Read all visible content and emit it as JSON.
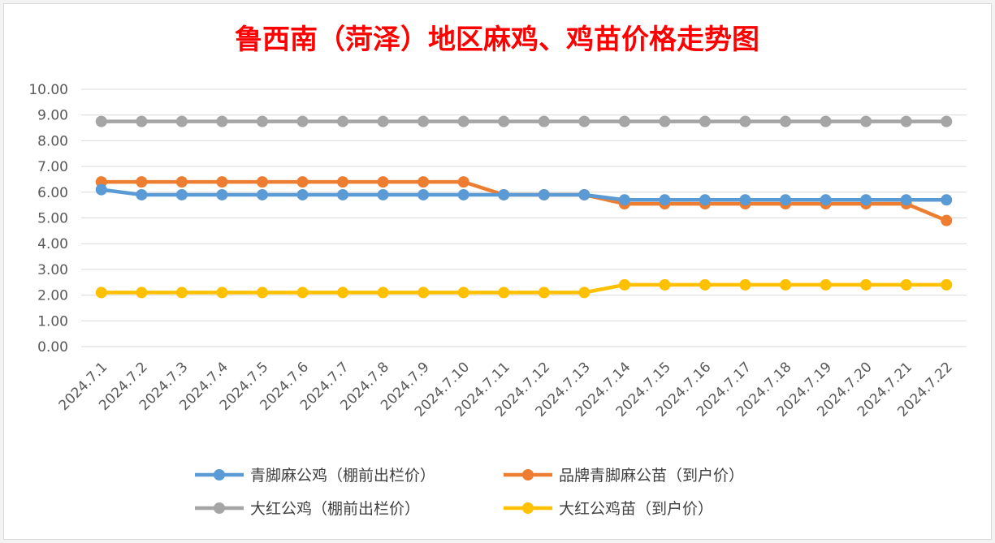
{
  "chart_data": {
    "type": "line",
    "title": "鲁西南（菏泽）地区麻鸡、鸡苗价格走势图",
    "xlabel": "",
    "ylabel": "",
    "ylim": [
      0,
      10
    ],
    "y_ticks": [
      "0.00",
      "1.00",
      "2.00",
      "3.00",
      "4.00",
      "5.00",
      "6.00",
      "7.00",
      "8.00",
      "9.00",
      "10.00"
    ],
    "grid": true,
    "legend_position": "bottom",
    "categories": [
      "2024.7.1",
      "2024.7.2",
      "2024.7.3",
      "2024.7.4",
      "2024.7.5",
      "2024.7.6",
      "2024.7.7",
      "2024.7.8",
      "2024.7.9",
      "2024.7.10",
      "2024.7.11",
      "2024.7.12",
      "2024.7.13",
      "2024.7.14",
      "2024.7.15",
      "2024.7.16",
      "2024.7.17",
      "2024.7.18",
      "2024.7.19",
      "2024.7.20",
      "2024.7.21",
      "2024.7.22"
    ],
    "series": [
      {
        "name": "青脚麻公鸡（棚前出栏价）",
        "color": "#5b9bd5",
        "values": [
          6.1,
          5.9,
          5.9,
          5.9,
          5.9,
          5.9,
          5.9,
          5.9,
          5.9,
          5.9,
          5.9,
          5.9,
          5.9,
          5.7,
          5.7,
          5.7,
          5.7,
          5.7,
          5.7,
          5.7,
          5.7,
          5.7
        ]
      },
      {
        "name": "品牌青脚麻公苗（到户价）",
        "color": "#ed7d31",
        "values": [
          6.4,
          6.4,
          6.4,
          6.4,
          6.4,
          6.4,
          6.4,
          6.4,
          6.4,
          6.4,
          5.9,
          5.9,
          5.9,
          5.55,
          5.55,
          5.55,
          5.55,
          5.55,
          5.55,
          5.55,
          5.55,
          4.9
        ]
      },
      {
        "name": "大红公鸡（棚前出栏价）",
        "color": "#a5a5a5",
        "values": [
          8.75,
          8.75,
          8.75,
          8.75,
          8.75,
          8.75,
          8.75,
          8.75,
          8.75,
          8.75,
          8.75,
          8.75,
          8.75,
          8.75,
          8.75,
          8.75,
          8.75,
          8.75,
          8.75,
          8.75,
          8.75,
          8.75
        ]
      },
      {
        "name": "大红公鸡苗（到户价）",
        "color": "#ffc000",
        "values": [
          2.1,
          2.1,
          2.1,
          2.1,
          2.1,
          2.1,
          2.1,
          2.1,
          2.1,
          2.1,
          2.1,
          2.1,
          2.1,
          2.4,
          2.4,
          2.4,
          2.4,
          2.4,
          2.4,
          2.4,
          2.4,
          2.4
        ]
      }
    ],
    "draw_order": [
      2,
      1,
      0,
      3
    ]
  }
}
